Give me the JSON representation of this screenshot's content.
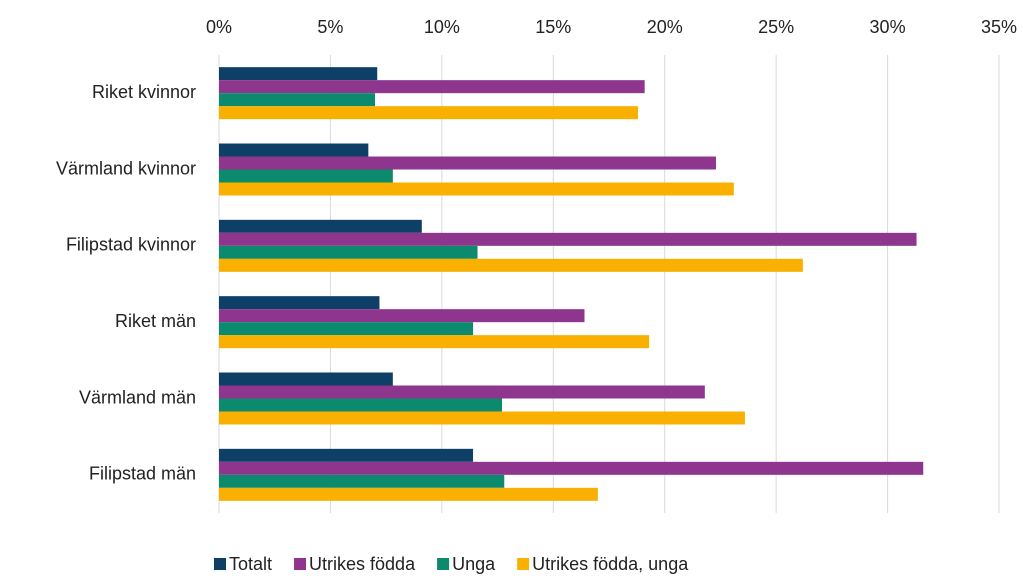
{
  "chart_data": {
    "type": "bar",
    "orientation": "horizontal",
    "categories": [
      "Riket kvinnor",
      "Värmland kvinnor",
      "Filipstad kvinnor",
      "Riket män",
      "Värmland män",
      "Filipstad män"
    ],
    "series": [
      {
        "name": "Totalt",
        "color": "#0e3f66",
        "values": [
          7.1,
          6.7,
          9.1,
          7.2,
          7.8,
          11.4
        ]
      },
      {
        "name": "Utrikes födda",
        "color": "#8e358e",
        "values": [
          19.1,
          22.3,
          31.3,
          16.4,
          21.8,
          31.6
        ]
      },
      {
        "name": "Unga",
        "color": "#0b8a6e",
        "values": [
          7.0,
          7.8,
          11.6,
          11.4,
          12.7,
          12.8
        ]
      },
      {
        "name": "Utrikes födda, unga",
        "color": "#f9b000",
        "values": [
          18.8,
          23.1,
          26.2,
          19.3,
          23.6,
          17.0
        ]
      }
    ],
    "xlim": [
      0,
      35
    ],
    "xticks": [
      {
        "value": 0,
        "label": "0%"
      },
      {
        "value": 5,
        "label": "5%"
      },
      {
        "value": 10,
        "label": "10%"
      },
      {
        "value": 15,
        "label": "15%"
      },
      {
        "value": 20,
        "label": "20%"
      },
      {
        "value": 25,
        "label": "25%"
      },
      {
        "value": 30,
        "label": "30%"
      },
      {
        "value": 35,
        "label": "35%"
      }
    ],
    "grid": true,
    "legend": "bottom"
  }
}
